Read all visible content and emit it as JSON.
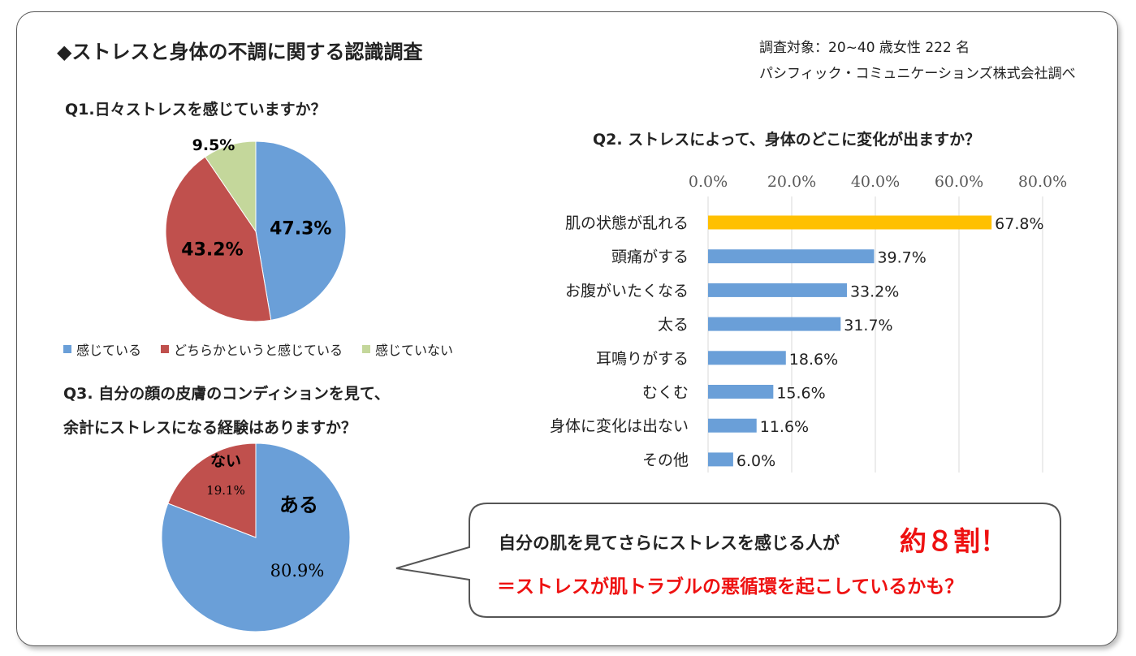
{
  "header": {
    "title": "◆ストレスと身体の不調に関する認識調査",
    "subject": "調査対象：20~40 歳女性 222 名",
    "source": "パシフィック・コミュニケーションズ株式会社調べ"
  },
  "colors": {
    "blue": "#6a9fd8",
    "red": "#c0504d",
    "green": "#c4d79b",
    "yellow": "#ffc000",
    "accent_red": "#ee1111"
  },
  "chart_data": [
    {
      "type": "pie",
      "title": "Q1.日々ストレスを感じていますか？",
      "categories": [
        "感じている",
        "どちらかというと感じている",
        "感じていない"
      ],
      "values": [
        47.3,
        43.2,
        9.5
      ],
      "labels": [
        "47.3%",
        "43.2%",
        "9.5%"
      ],
      "legend": "bottom"
    },
    {
      "type": "bar",
      "title": "Q2. ストレスによって、身体のどこに変化が出ますか？",
      "categories": [
        "肌の状態が乱れる",
        "頭痛がする",
        "お腹がいたくなる",
        "太る",
        "耳鳴りがする",
        "むくむ",
        "身体に変化は出ない",
        "その他"
      ],
      "values": [
        67.8,
        39.7,
        33.2,
        31.7,
        18.6,
        15.6,
        11.6,
        6.0
      ],
      "labels": [
        "67.8%",
        "39.7%",
        "33.2%",
        "31.7%",
        "18.6%",
        "15.6%",
        "11.6%",
        "6.0%"
      ],
      "xlim": [
        0,
        80
      ],
      "ticks": [
        "0.0%",
        "20.0%",
        "40.0%",
        "60.0%",
        "80.0%"
      ],
      "grid": true
    },
    {
      "type": "pie",
      "title_lines": [
        "Q3. 自分の顔の皮膚のコンディションを見て、",
        "余計にストレスになる経験はありますか？"
      ],
      "categories": [
        "ある",
        "ない"
      ],
      "values": [
        80.9,
        19.1
      ],
      "labels": [
        "80.9%",
        "19.1%"
      ]
    }
  ],
  "callout": {
    "line1": "自分の肌を見てさらにストレスを感じる人が",
    "emphasis": "約８割！",
    "line2": "＝ストレスが肌トラブルの悪循環を起こしているかも？"
  }
}
